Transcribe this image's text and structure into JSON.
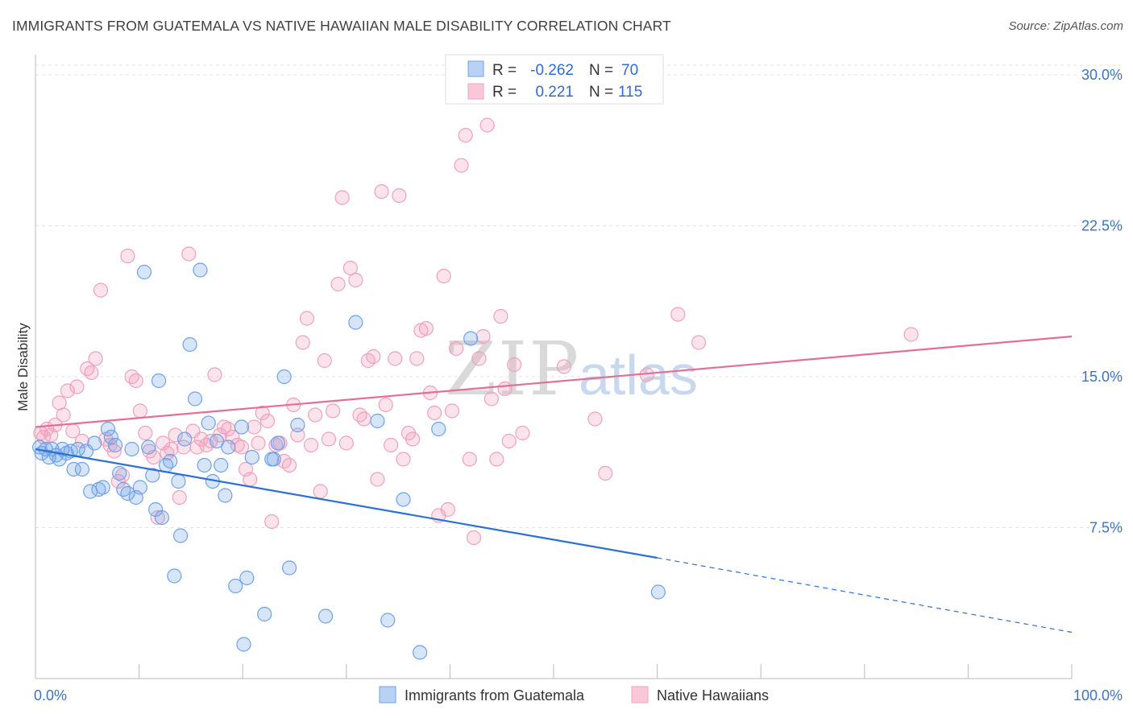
{
  "header": {
    "title": "IMMIGRANTS FROM GUATEMALA VS NATIVE HAWAIIAN MALE DISABILITY CORRELATION CHART",
    "source": "Source: ZipAtlas.com"
  },
  "watermark": {
    "zip": "ZIP",
    "atlas": "atlas"
  },
  "legend_top": {
    "rows": [
      {
        "r_label": "R = ",
        "r_value": "-0.262",
        "n_label": "N = ",
        "n_value": "70"
      },
      {
        "r_label": "R = ",
        "r_value": "0.221",
        "n_label": "N = ",
        "n_value": "115"
      }
    ]
  },
  "legend_bottom": {
    "items": [
      {
        "label": "Immigrants from Guatemala"
      },
      {
        "label": "Native Hawaiians"
      }
    ]
  },
  "chart_data": {
    "type": "scatter",
    "title": "IMMIGRANTS FROM GUATEMALA VS NATIVE HAWAIIAN MALE DISABILITY CORRELATION CHART",
    "xlabel": "",
    "ylabel": "Male Disability",
    "xlim": [
      0,
      100
    ],
    "ylim": [
      0,
      31
    ],
    "x_tick_labels": [
      "0.0%",
      "100.0%"
    ],
    "y_ticks": [
      7.5,
      15.0,
      22.5,
      30.0
    ],
    "y_tick_labels": [
      "7.5%",
      "15.0%",
      "22.5%",
      "30.0%"
    ],
    "grid": true,
    "legend_position": "top-center",
    "colors": {
      "blue": "#6ea1e8",
      "blue_line": "#2c6fd6",
      "pink": "#f2a3bf",
      "pink_line": "#e46e98"
    },
    "series": [
      {
        "name": "Immigrants from Guatemala",
        "color": "blue",
        "r": -0.262,
        "n": 70,
        "trend": {
          "x0": 0,
          "y0": 11.4,
          "x1": 60,
          "y1": 6.0,
          "dash_x1": 100,
          "dash_y1": 2.3
        },
        "points": [
          [
            0.4,
            11.5
          ],
          [
            0.6,
            11.2
          ],
          [
            1.0,
            11.4
          ],
          [
            1.3,
            11.0
          ],
          [
            1.6,
            11.4
          ],
          [
            2.0,
            11.1
          ],
          [
            2.3,
            10.9
          ],
          [
            2.6,
            11.4
          ],
          [
            3.0,
            11.2
          ],
          [
            3.4,
            11.3
          ],
          [
            3.7,
            10.4
          ],
          [
            4.1,
            11.4
          ],
          [
            4.5,
            10.4
          ],
          [
            4.9,
            11.3
          ],
          [
            5.3,
            9.3
          ],
          [
            5.7,
            11.7
          ],
          [
            6.1,
            9.4
          ],
          [
            6.5,
            9.5
          ],
          [
            7.0,
            12.4
          ],
          [
            7.3,
            12.0
          ],
          [
            7.7,
            11.6
          ],
          [
            8.1,
            10.2
          ],
          [
            8.5,
            9.4
          ],
          [
            8.9,
            9.2
          ],
          [
            9.3,
            11.4
          ],
          [
            9.7,
            9.0
          ],
          [
            10.1,
            9.5
          ],
          [
            10.5,
            20.2
          ],
          [
            10.9,
            11.5
          ],
          [
            11.3,
            10.1
          ],
          [
            11.6,
            8.4
          ],
          [
            11.9,
            14.8
          ],
          [
            12.2,
            8.0
          ],
          [
            12.6,
            10.6
          ],
          [
            13.0,
            10.8
          ],
          [
            13.4,
            5.1
          ],
          [
            13.8,
            9.8
          ],
          [
            14.0,
            7.1
          ],
          [
            14.4,
            11.9
          ],
          [
            14.9,
            16.6
          ],
          [
            15.4,
            13.9
          ],
          [
            15.9,
            20.3
          ],
          [
            16.3,
            10.6
          ],
          [
            16.7,
            12.7
          ],
          [
            17.1,
            9.8
          ],
          [
            17.5,
            11.8
          ],
          [
            17.9,
            10.6
          ],
          [
            18.3,
            9.1
          ],
          [
            18.6,
            11.5
          ],
          [
            19.3,
            4.6
          ],
          [
            19.9,
            12.5
          ],
          [
            20.4,
            5.0
          ],
          [
            20.9,
            11.0
          ],
          [
            22.1,
            3.2
          ],
          [
            22.8,
            10.9
          ],
          [
            23.4,
            11.7
          ],
          [
            24.0,
            15.0
          ],
          [
            24.5,
            5.5
          ],
          [
            23.0,
            10.9
          ],
          [
            20.1,
            1.7
          ],
          [
            25.3,
            12.6
          ],
          [
            28.0,
            3.1
          ],
          [
            30.9,
            17.7
          ],
          [
            34.0,
            2.9
          ],
          [
            35.5,
            8.9
          ],
          [
            33.0,
            12.8
          ],
          [
            38.9,
            12.4
          ],
          [
            42.0,
            16.9
          ],
          [
            37.1,
            1.3
          ],
          [
            60.1,
            4.3
          ]
        ]
      },
      {
        "name": "Native Hawaiians",
        "color": "pink",
        "r": 0.221,
        "n": 115,
        "trend": {
          "x0": 0,
          "y0": 12.5,
          "x1": 100,
          "y1": 17.0
        },
        "points": [
          [
            0.5,
            12.2
          ],
          [
            0.8,
            12.0
          ],
          [
            1.1,
            12.4
          ],
          [
            1.5,
            12.1
          ],
          [
            1.9,
            12.6
          ],
          [
            2.3,
            13.7
          ],
          [
            2.7,
            13.1
          ],
          [
            3.1,
            14.3
          ],
          [
            3.6,
            12.3
          ],
          [
            4.0,
            14.5
          ],
          [
            4.5,
            11.8
          ],
          [
            5.0,
            15.4
          ],
          [
            5.4,
            15.2
          ],
          [
            5.8,
            15.9
          ],
          [
            6.3,
            19.3
          ],
          [
            6.8,
            11.9
          ],
          [
            7.2,
            11.6
          ],
          [
            7.6,
            11.3
          ],
          [
            8.0,
            9.8
          ],
          [
            8.4,
            10.1
          ],
          [
            8.9,
            21.0
          ],
          [
            9.3,
            15.0
          ],
          [
            9.7,
            14.8
          ],
          [
            10.1,
            13.3
          ],
          [
            10.6,
            12.2
          ],
          [
            11.0,
            11.3
          ],
          [
            11.4,
            11.0
          ],
          [
            11.8,
            8.0
          ],
          [
            12.3,
            11.7
          ],
          [
            12.7,
            11.2
          ],
          [
            13.1,
            11.4
          ],
          [
            13.5,
            12.1
          ],
          [
            13.9,
            9.0
          ],
          [
            14.3,
            11.5
          ],
          [
            14.8,
            21.1
          ],
          [
            15.2,
            12.3
          ],
          [
            15.6,
            11.5
          ],
          [
            16.0,
            11.9
          ],
          [
            16.5,
            11.6
          ],
          [
            16.9,
            11.8
          ],
          [
            17.3,
            15.1
          ],
          [
            17.8,
            12.1
          ],
          [
            18.2,
            12.5
          ],
          [
            18.6,
            12.4
          ],
          [
            19.0,
            12.0
          ],
          [
            19.5,
            11.6
          ],
          [
            19.9,
            11.5
          ],
          [
            20.3,
            10.4
          ],
          [
            20.7,
            9.9
          ],
          [
            21.1,
            12.5
          ],
          [
            21.5,
            11.7
          ],
          [
            21.9,
            13.2
          ],
          [
            22.4,
            12.8
          ],
          [
            22.8,
            7.8
          ],
          [
            23.2,
            11.6
          ],
          [
            23.6,
            11.7
          ],
          [
            24.0,
            10.8
          ],
          [
            24.5,
            10.6
          ],
          [
            24.9,
            13.6
          ],
          [
            25.3,
            12.1
          ],
          [
            25.8,
            16.7
          ],
          [
            26.2,
            17.9
          ],
          [
            26.6,
            11.6
          ],
          [
            27.0,
            13.1
          ],
          [
            27.5,
            9.3
          ],
          [
            27.9,
            15.8
          ],
          [
            28.3,
            11.9
          ],
          [
            28.7,
            13.3
          ],
          [
            29.2,
            19.6
          ],
          [
            29.6,
            23.9
          ],
          [
            30.0,
            11.7
          ],
          [
            30.4,
            20.4
          ],
          [
            30.9,
            19.8
          ],
          [
            31.3,
            13.1
          ],
          [
            31.7,
            12.9
          ],
          [
            32.1,
            15.8
          ],
          [
            32.6,
            16.0
          ],
          [
            33.0,
            9.9
          ],
          [
            33.4,
            24.2
          ],
          [
            33.8,
            13.6
          ],
          [
            34.3,
            11.6
          ],
          [
            34.7,
            15.9
          ],
          [
            35.1,
            24.0
          ],
          [
            35.5,
            10.9
          ],
          [
            36.0,
            12.2
          ],
          [
            36.4,
            11.9
          ],
          [
            36.8,
            15.9
          ],
          [
            37.2,
            17.3
          ],
          [
            37.7,
            17.4
          ],
          [
            38.1,
            14.2
          ],
          [
            38.5,
            13.2
          ],
          [
            38.9,
            8.1
          ],
          [
            39.4,
            20.0
          ],
          [
            39.8,
            8.4
          ],
          [
            40.2,
            13.3
          ],
          [
            40.6,
            16.4
          ],
          [
            41.1,
            25.5
          ],
          [
            41.5,
            27.0
          ],
          [
            41.9,
            10.9
          ],
          [
            42.3,
            7.0
          ],
          [
            42.8,
            15.9
          ],
          [
            43.2,
            17.0
          ],
          [
            43.6,
            27.5
          ],
          [
            44.0,
            13.9
          ],
          [
            44.5,
            10.9
          ],
          [
            44.9,
            18.0
          ],
          [
            45.3,
            14.4
          ],
          [
            45.7,
            11.8
          ],
          [
            46.2,
            15.6
          ],
          [
            47.0,
            12.2
          ],
          [
            51.0,
            15.5
          ],
          [
            54.0,
            12.9
          ],
          [
            55.0,
            10.2
          ],
          [
            59.0,
            15.1
          ],
          [
            62.0,
            18.1
          ],
          [
            64.0,
            16.7
          ],
          [
            84.5,
            17.1
          ]
        ]
      }
    ]
  }
}
